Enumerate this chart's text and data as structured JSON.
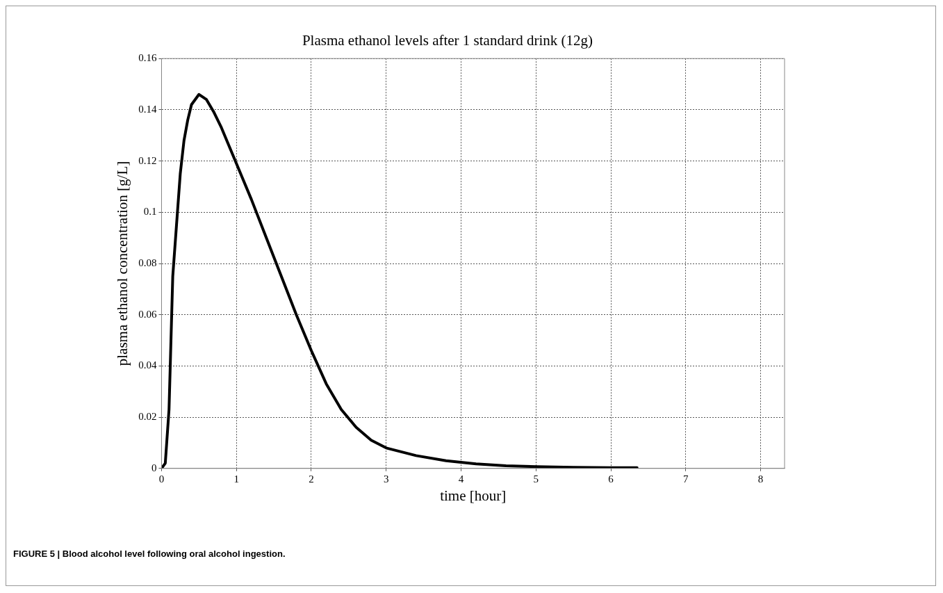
{
  "chart_data": {
    "type": "line",
    "title": "Plasma ethanol levels after 1 standard drink (12g)",
    "xlabel": "time [hour]",
    "ylabel": "plasma ethanol concentration [g/L]",
    "x": [
      0,
      0.05,
      0.1,
      0.15,
      0.2,
      0.25,
      0.3,
      0.35,
      0.4,
      0.5,
      0.6,
      0.7,
      0.8,
      0.9,
      1.0,
      1.2,
      1.4,
      1.6,
      1.8,
      2.0,
      2.2,
      2.4,
      2.6,
      2.8,
      3.0,
      3.4,
      3.8,
      4.2,
      4.6,
      5.0,
      5.5,
      6.0,
      6.35
    ],
    "series": [
      {
        "color": "#000000",
        "values": [
          0,
          0.002,
          0.023,
          0.075,
          0.095,
          0.115,
          0.128,
          0.136,
          0.142,
          0.146,
          0.144,
          0.139,
          0.133,
          0.126,
          0.119,
          0.105,
          0.09,
          0.075,
          0.06,
          0.046,
          0.033,
          0.023,
          0.016,
          0.011,
          0.008,
          0.005,
          0.003,
          0.0018,
          0.001,
          0.0007,
          0.0004,
          0.0003,
          0.0003
        ]
      }
    ],
    "xlim": [
      0,
      8.32
    ],
    "xticks": [
      0,
      1,
      2,
      3,
      4,
      5,
      6,
      7,
      8
    ],
    "ylim": [
      0,
      0.16
    ],
    "yticks": [
      0,
      0.02,
      0.04,
      0.06,
      0.08,
      0.1,
      0.12,
      0.14,
      0.16
    ],
    "grid": true,
    "legend": false,
    "marker": "none",
    "line_style": "solid",
    "annotations": [
      "FIGURE 5 | Blood alcohol level following oral alcohol ingestion."
    ]
  }
}
